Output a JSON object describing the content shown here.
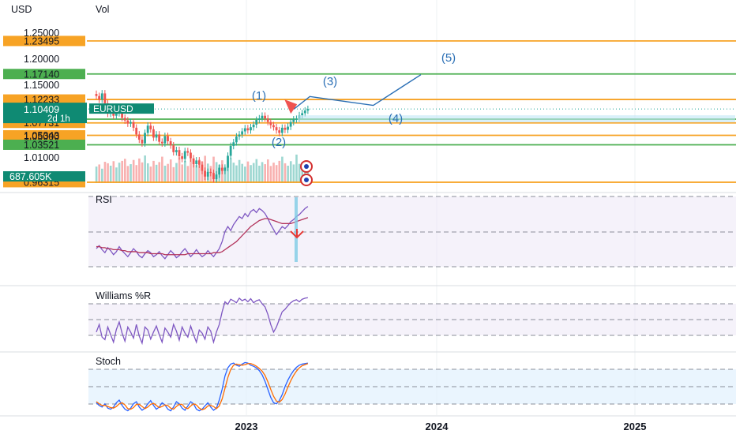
{
  "header": {
    "currency": "USD",
    "volume_label": "Vol"
  },
  "colors": {
    "up": "#26a69a",
    "down": "#ef5350",
    "resistance": "#f7a325",
    "support": "#4caf50",
    "wave": "#2a6fb5",
    "rsi": "#7e57c2",
    "rsi_ma": "#b2335b",
    "stoch_k": "#2962ff",
    "stoch_d": "#ff6d00"
  },
  "chart_data": [
    {
      "type": "candlestick",
      "symbol": "EURUSD",
      "ylabel": "USD",
      "yticks": [
        "1.25000",
        "1.20000",
        "1.15000",
        "1.10000",
        "1.05000",
        "1.01000"
      ],
      "ylim": [
        0.96,
        1.262
      ],
      "horizontal_levels": [
        {
          "label": "1.23495",
          "value": 1.23495,
          "kind": "resistance"
        },
        {
          "label": "1.17140",
          "value": 1.1714,
          "kind": "support"
        },
        {
          "label": "1.12233",
          "value": 1.12233,
          "kind": "resistance"
        },
        {
          "label": "1.08446",
          "value": 1.08446,
          "kind": "support"
        },
        {
          "label": "1.07731",
          "value": 1.07731,
          "kind": "resistance"
        },
        {
          "label": "1.05343",
          "value": 1.05343,
          "kind": "resistance"
        },
        {
          "label": "1.03521",
          "value": 1.03521,
          "kind": "support"
        },
        {
          "label": "0.96315",
          "value": 0.96315,
          "kind": "resistance"
        }
      ],
      "price_tag": {
        "symbol_label": "EURUSD",
        "price": "1.10409",
        "countdown": "2d 1h",
        "value": 1.10409
      },
      "volume_tag": "687.605K",
      "closes_weekly": [
        1.129,
        1.122,
        1.134,
        1.115,
        1.095,
        1.101,
        1.091,
        1.096,
        1.106,
        1.087,
        1.082,
        1.076,
        1.079,
        1.068,
        1.055,
        1.045,
        1.038,
        1.058,
        1.072,
        1.065,
        1.049,
        1.055,
        1.041,
        1.038,
        1.052,
        1.042,
        1.034,
        1.021,
        1.025,
        1.013,
        1.008,
        1.023,
        1.02,
        1.009,
        0.998,
        1.005,
        0.997,
        0.985,
        0.974,
        0.983,
        0.981,
        0.969,
        0.978,
        0.991,
        0.985,
        0.991,
        1.014,
        1.033,
        1.04,
        1.051,
        1.055,
        1.061,
        1.067,
        1.063,
        1.069,
        1.074,
        1.083,
        1.086,
        1.091,
        1.086,
        1.079,
        1.073,
        1.069,
        1.063,
        1.058,
        1.068,
        1.064,
        1.07,
        1.079,
        1.084,
        1.085,
        1.092,
        1.096,
        1.101,
        1.104
      ],
      "volume_weekly": [
        0.55,
        0.62,
        0.48,
        0.71,
        0.66,
        0.58,
        0.73,
        0.52,
        0.68,
        0.74,
        0.81,
        0.57,
        0.63,
        0.77,
        0.6,
        0.82,
        0.69,
        0.92,
        0.66,
        0.55,
        0.74,
        0.61,
        0.7,
        0.88,
        0.58,
        0.64,
        0.79,
        0.53,
        0.67,
        0.86,
        0.62,
        0.74,
        0.57,
        0.81,
        0.69,
        0.6,
        0.78,
        0.72,
        0.91,
        0.65,
        0.57,
        0.88,
        0.7,
        0.61,
        0.76,
        0.54,
        0.72,
        0.83,
        0.68,
        0.59,
        0.77,
        0.64,
        0.55,
        0.72,
        0.6,
        0.67,
        0.8,
        0.58,
        0.7,
        0.63,
        0.79,
        0.57,
        0.68,
        0.6,
        0.74,
        0.88,
        0.66,
        0.58,
        0.73,
        0.62,
        0.95,
        0.64,
        0.7,
        0.6,
        0.45
      ],
      "wave_labels": [
        "(1)",
        "(2)",
        "(3)",
        "(4)",
        "(5)"
      ],
      "projection_path": [
        {
          "x": "2023-04",
          "y": 1.104
        },
        {
          "x": "2023-05",
          "y": 1.128
        },
        {
          "x": "2023-09",
          "y": 1.111
        },
        {
          "x": "2023-12",
          "y": 1.17
        }
      ]
    },
    {
      "type": "line",
      "title": "RSI",
      "series": [
        {
          "values": [
            38,
            41,
            37,
            34,
            39,
            36,
            32,
            35,
            40,
            36,
            33,
            30,
            34,
            38,
            35,
            31,
            29,
            33,
            36,
            34,
            30,
            32,
            35,
            31,
            28,
            32,
            36,
            33,
            29,
            31,
            35,
            38,
            34,
            30,
            33,
            37,
            33,
            30,
            32,
            36,
            33,
            30,
            34,
            38,
            45,
            55,
            60,
            56,
            62,
            66,
            70,
            68,
            73,
            70,
            75,
            77,
            74,
            78,
            76,
            73,
            68,
            62,
            57,
            52,
            56,
            60,
            58,
            61,
            65,
            67,
            70,
            72,
            75,
            78,
            80
          ]
        },
        {
          "values": [
            40,
            40,
            39,
            39,
            38,
            38,
            37,
            37,
            37,
            36,
            36,
            35,
            35,
            35,
            35,
            34,
            34,
            34,
            34,
            33,
            33,
            33,
            33,
            33,
            32,
            32,
            32,
            32,
            32,
            32,
            32,
            32,
            33,
            33,
            33,
            33,
            33,
            33,
            33,
            33,
            33,
            34,
            34,
            34,
            35,
            37,
            39,
            41,
            43,
            45,
            48,
            51,
            54,
            57,
            60,
            62,
            64,
            66,
            67,
            68,
            68,
            67,
            66,
            65,
            64,
            63,
            63,
            63,
            63,
            64,
            65,
            66,
            67,
            68,
            69
          ]
        }
      ],
      "ylim": [
        20,
        90
      ]
    },
    {
      "type": "line",
      "title": "Williams %R",
      "series": [
        {
          "values": [
            -70,
            -55,
            -80,
            -85,
            -60,
            -75,
            -90,
            -65,
            -50,
            -72,
            -88,
            -60,
            -70,
            -82,
            -55,
            -78,
            -92,
            -60,
            -66,
            -84,
            -70,
            -58,
            -75,
            -90,
            -62,
            -70,
            -80,
            -55,
            -68,
            -86,
            -60,
            -72,
            -80,
            -58,
            -75,
            -90,
            -66,
            -72,
            -84,
            -60,
            -68,
            -90,
            -70,
            -55,
            -30,
            -10,
            -15,
            -5,
            -8,
            -12,
            -3,
            -8,
            -5,
            -10,
            -4,
            -12,
            -8,
            -6,
            -14,
            -20,
            -35,
            -55,
            -70,
            -60,
            -45,
            -30,
            -25,
            -18,
            -12,
            -8,
            -6,
            -10,
            -5,
            -3,
            -2
          ]
        }
      ],
      "ylim": [
        -100,
        0
      ]
    },
    {
      "type": "line",
      "title": "Stoch",
      "series": [
        {
          "values": [
            20,
            15,
            12,
            18,
            10,
            8,
            12,
            20,
            25,
            15,
            8,
            5,
            10,
            18,
            22,
            12,
            6,
            10,
            18,
            24,
            15,
            8,
            12,
            20,
            16,
            8,
            5,
            12,
            22,
            18,
            10,
            6,
            14,
            22,
            18,
            8,
            5,
            8,
            14,
            20,
            12,
            6,
            10,
            25,
            45,
            70,
            85,
            92,
            94,
            90,
            88,
            92,
            95,
            94,
            90,
            88,
            85,
            80,
            72,
            60,
            45,
            30,
            20,
            18,
            24,
            35,
            50,
            62,
            72,
            80,
            86,
            90,
            92,
            93,
            94
          ]
        },
        {
          "values": [
            22,
            18,
            15,
            15,
            13,
            11,
            10,
            13,
            18,
            20,
            16,
            9,
            8,
            11,
            17,
            17,
            13,
            9,
            12,
            17,
            19,
            15,
            11,
            13,
            16,
            15,
            10,
            8,
            13,
            17,
            17,
            11,
            9,
            14,
            18,
            16,
            10,
            7,
            9,
            14,
            15,
            13,
            9,
            14,
            27,
            47,
            67,
            82,
            90,
            92,
            91,
            90,
            91,
            93,
            93,
            91,
            88,
            84,
            79,
            71,
            59,
            45,
            32,
            23,
            21,
            26,
            36,
            49,
            61,
            71,
            79,
            85,
            89,
            91,
            93
          ]
        }
      ],
      "ylim": [
        0,
        100
      ]
    }
  ],
  "xaxis": {
    "ticks": [
      "2023",
      "2024",
      "2025"
    ]
  }
}
